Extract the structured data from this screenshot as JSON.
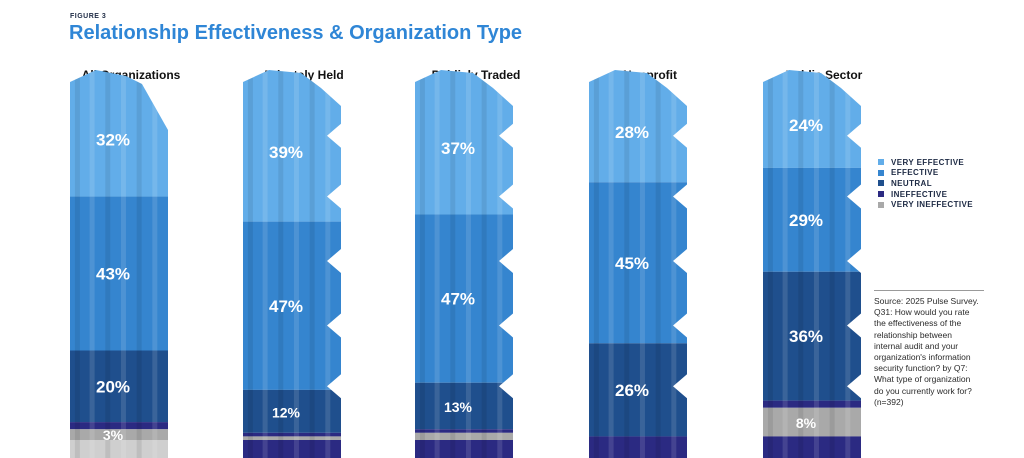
{
  "figure_label": "FIGURE 3",
  "title": "Relationship Effectiveness & Organization Type",
  "chart_data": {
    "type": "bar",
    "stacked": true,
    "categories": [
      "All Organizations",
      "Privately Held",
      "Publicly Traded",
      "Nonprofit",
      "Public Sector"
    ],
    "series": [
      {
        "name": "VERY EFFECTIVE",
        "color": "#62ade9",
        "values": [
          32,
          39,
          37,
          28,
          24
        ]
      },
      {
        "name": "EFFECTIVE",
        "color": "#3585cf",
        "values": [
          43,
          47,
          47,
          45,
          29
        ]
      },
      {
        "name": "NEUTRAL",
        "color": "#1f4f8d",
        "values": [
          20,
          12,
          13,
          26,
          36
        ]
      },
      {
        "name": "INEFFECTIVE",
        "color": "#2b2a82",
        "values": [
          2,
          1,
          1,
          1,
          2
        ]
      },
      {
        "name": "VERY INEFFECTIVE",
        "color": "#a9a9a9",
        "values": [
          3,
          1,
          2,
          0,
          8
        ]
      }
    ],
    "data_labels": [
      [
        "32%",
        "43%",
        "20%",
        "",
        "3%"
      ],
      [
        "39%",
        "47%",
        "12%",
        "",
        ""
      ],
      [
        "37%",
        "47%",
        "13%",
        "",
        ""
      ],
      [
        "28%",
        "45%",
        "26%",
        "",
        ""
      ],
      [
        "24%",
        "29%",
        "36%",
        "",
        "8%"
      ]
    ],
    "legend_position": "right",
    "ylim": [
      0,
      100
    ]
  },
  "source_note": "Source: 2025 Pulse Survey. Q31: How would you rate the effectiveness of the relationship between internal audit and your organization's information security function? by Q7: What type of organization do you currently work for? (n=392)"
}
